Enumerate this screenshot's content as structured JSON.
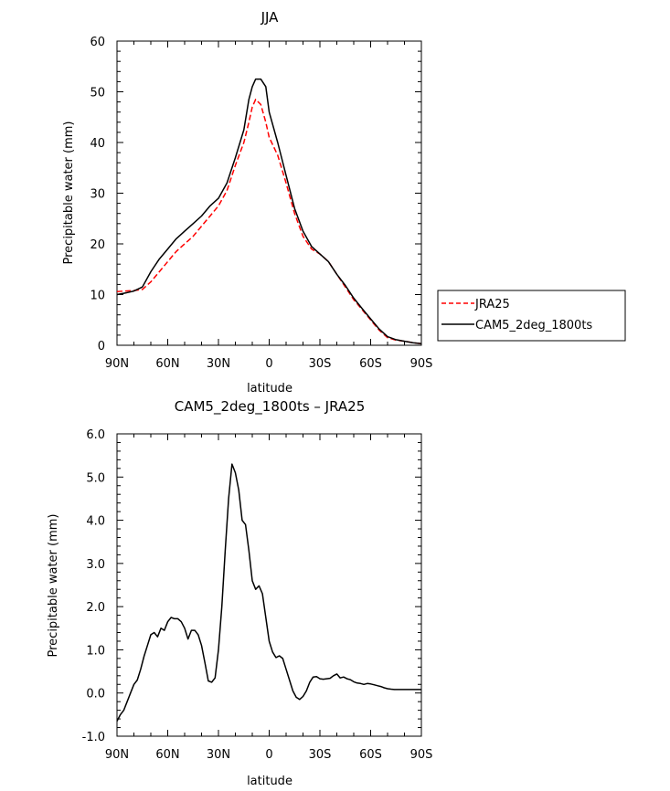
{
  "chart_data": [
    {
      "type": "line",
      "title": "JJA",
      "xlabel": "latitude",
      "ylabel": "Precipitable water (mm)",
      "xlim": [
        90,
        -90
      ],
      "ylim": [
        0,
        60
      ],
      "xticks": [
        90,
        60,
        30,
        0,
        -30,
        -60,
        -90
      ],
      "xtick_labels": [
        "90N",
        "60N",
        "30N",
        "0",
        "30S",
        "60S",
        "90S"
      ],
      "yticks": [
        0,
        10,
        20,
        30,
        40,
        50,
        60
      ],
      "ytick_labels": [
        "0",
        "10",
        "20",
        "30",
        "40",
        "50",
        "60"
      ],
      "grid": false,
      "legend": "right",
      "series": [
        {
          "name": "JRA25",
          "color": "#ff0000",
          "dash": true,
          "x": [
            90,
            85,
            80,
            75,
            70,
            65,
            60,
            55,
            50,
            45,
            40,
            35,
            30,
            25,
            20,
            15,
            12,
            10,
            8,
            5,
            2,
            0,
            -5,
            -10,
            -15,
            -20,
            -25,
            -30,
            -35,
            -40,
            -45,
            -50,
            -55,
            -60,
            -65,
            -70,
            -75,
            -80,
            -85,
            -90
          ],
          "y": [
            10.6,
            10.7,
            10.8,
            11.0,
            12.5,
            14.5,
            16.5,
            18.5,
            20.0,
            21.5,
            23.5,
            25.5,
            27.5,
            30.5,
            35.5,
            40.0,
            44.0,
            47.0,
            48.5,
            47.5,
            44.0,
            41.0,
            37.5,
            32.0,
            26.0,
            21.5,
            19.0,
            18.0,
            16.5,
            14.0,
            11.5,
            9.0,
            7.0,
            5.0,
            3.0,
            1.5,
            1.0,
            0.8,
            0.5,
            0.3
          ]
        },
        {
          "name": "CAM5_2deg_1800ts",
          "color": "#000000",
          "dash": false,
          "x": [
            90,
            85,
            80,
            75,
            70,
            65,
            60,
            55,
            50,
            45,
            40,
            35,
            30,
            25,
            20,
            15,
            12,
            10,
            8,
            5,
            2,
            0,
            -5,
            -10,
            -15,
            -20,
            -25,
            -30,
            -35,
            -40,
            -45,
            -50,
            -55,
            -60,
            -65,
            -70,
            -75,
            -80,
            -85,
            -90
          ],
          "y": [
            10.0,
            10.3,
            10.7,
            11.5,
            14.5,
            17.0,
            19.0,
            21.0,
            22.5,
            24.0,
            25.5,
            27.5,
            29.0,
            32.0,
            37.0,
            42.5,
            48.5,
            51.0,
            52.5,
            52.5,
            51.0,
            46.0,
            40.0,
            33.5,
            27.0,
            22.5,
            19.5,
            18.0,
            16.5,
            14.0,
            11.8,
            9.3,
            7.2,
            5.2,
            3.2,
            1.7,
            1.1,
            0.8,
            0.5,
            0.3
          ]
        }
      ]
    },
    {
      "type": "line",
      "title": "CAM5_2deg_1800ts – JRA25",
      "xlabel": "latitude",
      "ylabel": "Precipitable water (mm)",
      "xlim": [
        90,
        -90
      ],
      "ylim": [
        -1,
        6
      ],
      "xticks": [
        90,
        60,
        30,
        0,
        -30,
        -60,
        -90
      ],
      "xtick_labels": [
        "90N",
        "60N",
        "30N",
        "0",
        "30S",
        "60S",
        "90S"
      ],
      "yticks": [
        -1,
        0,
        1,
        2,
        3,
        4,
        5,
        6
      ],
      "ytick_labels": [
        "-1.0",
        "0.0",
        "1.0",
        "2.0",
        "3.0",
        "4.0",
        "5.0",
        "6.0"
      ],
      "grid": false,
      "series": [
        {
          "color": "#000000",
          "dash": false,
          "x": [
            90,
            88,
            86,
            84,
            82,
            80,
            78,
            76,
            74,
            72,
            70,
            68,
            66,
            64,
            62,
            60,
            58,
            56,
            54,
            52,
            50,
            48,
            46,
            44,
            42,
            40,
            38,
            36,
            34,
            32,
            30,
            28,
            26,
            24,
            22,
            20,
            18,
            16,
            14,
            12,
            10,
            8,
            6,
            4,
            2,
            0,
            -2,
            -4,
            -6,
            -8,
            -10,
            -12,
            -14,
            -16,
            -18,
            -20,
            -22,
            -24,
            -26,
            -28,
            -30,
            -32,
            -34,
            -36,
            -38,
            -40,
            -42,
            -44,
            -46,
            -48,
            -50,
            -52,
            -54,
            -56,
            -58,
            -60,
            -62,
            -64,
            -66,
            -68,
            -70,
            -72,
            -74,
            -76,
            -78,
            -80,
            -82,
            -84,
            -86,
            -88,
            -90
          ],
          "y": [
            -0.65,
            -0.5,
            -0.4,
            -0.2,
            0.0,
            0.2,
            0.3,
            0.55,
            0.85,
            1.1,
            1.35,
            1.4,
            1.3,
            1.5,
            1.45,
            1.65,
            1.75,
            1.72,
            1.72,
            1.65,
            1.5,
            1.25,
            1.45,
            1.45,
            1.35,
            1.1,
            0.7,
            0.28,
            0.25,
            0.35,
            1.0,
            2.0,
            3.3,
            4.5,
            5.3,
            5.1,
            4.7,
            4.0,
            3.9,
            3.3,
            2.6,
            2.4,
            2.48,
            2.3,
            1.75,
            1.2,
            0.95,
            0.82,
            0.86,
            0.8,
            0.55,
            0.3,
            0.05,
            -0.1,
            -0.15,
            -0.08,
            0.05,
            0.25,
            0.37,
            0.38,
            0.33,
            0.32,
            0.33,
            0.34,
            0.4,
            0.44,
            0.35,
            0.37,
            0.33,
            0.31,
            0.26,
            0.23,
            0.22,
            0.2,
            0.22,
            0.21,
            0.19,
            0.17,
            0.15,
            0.12,
            0.1,
            0.09,
            0.08,
            0.08,
            0.08,
            0.08,
            0.08,
            0.08,
            0.08,
            0.08,
            0.08
          ]
        }
      ]
    }
  ]
}
